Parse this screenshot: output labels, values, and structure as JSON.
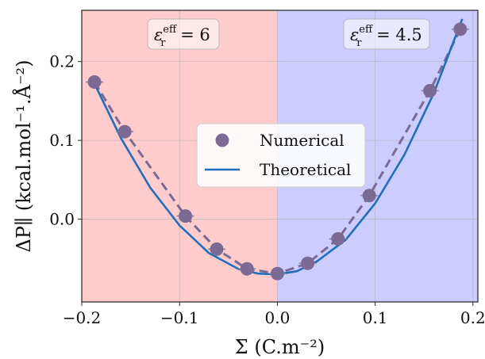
{
  "chart_data": {
    "type": "scatter",
    "xlabel": "Σ (C.m⁻²)",
    "ylabel": "ΔP∥ (kcal.mol⁻¹.Å⁻²)",
    "xlim": [
      -0.2,
      0.205
    ],
    "ylim": [
      -0.105,
      0.265
    ],
    "x_ticks": [
      -0.2,
      -0.1,
      0.0,
      0.1,
      0.2
    ],
    "x_tick_labels": [
      "−0.2",
      "−0.1",
      "0.0",
      "0.1",
      "0.2"
    ],
    "y_ticks": [
      0.0,
      0.1,
      0.2
    ],
    "y_tick_labels": [
      "0.0",
      "0.1",
      "0.2"
    ],
    "grid": true,
    "legend_position": "center",
    "regions": [
      {
        "x_from": -0.2,
        "x_to": 0.0,
        "color": "#ffcccc",
        "label": "ε",
        "sup": "eff",
        "sub": "r",
        "value": "= 6"
      },
      {
        "x_from": 0.0,
        "x_to": 0.205,
        "color": "#ccccff",
        "label": "ε",
        "sup": "eff",
        "sub": "r",
        "value": "= 4.5"
      }
    ],
    "series": [
      {
        "name": "Numerical",
        "style": "markers+dashed",
        "color": "#7b6a94",
        "x": [
          -0.187,
          -0.156,
          -0.094,
          -0.062,
          -0.031,
          0.0,
          0.031,
          0.062,
          0.094,
          0.156,
          0.187
        ],
        "y": [
          0.174,
          0.111,
          0.004,
          -0.038,
          -0.063,
          -0.069,
          -0.056,
          -0.025,
          0.03,
          0.163,
          0.241
        ]
      },
      {
        "name": "Theoretical",
        "style": "line",
        "color": "#1f6fbf",
        "x": [
          -0.187,
          -0.16,
          -0.13,
          -0.1,
          -0.07,
          -0.04,
          -0.02,
          0.0,
          0.02,
          0.04,
          0.07,
          0.1,
          0.13,
          0.16,
          0.189
        ],
        "y": [
          0.172,
          0.103,
          0.04,
          -0.008,
          -0.043,
          -0.063,
          -0.069,
          -0.07,
          -0.066,
          -0.054,
          -0.026,
          0.02,
          0.082,
          0.16,
          0.254
        ]
      }
    ]
  }
}
